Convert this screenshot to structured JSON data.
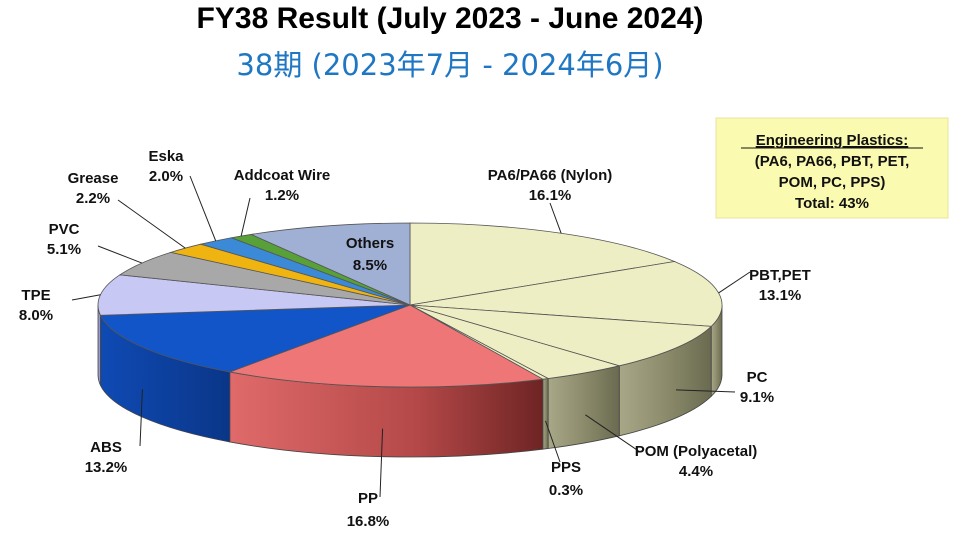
{
  "title": "FY38 Result (July 2023 - June 2024)",
  "subtitle": "38期 (2023年7月 - 2024年6月)",
  "callout": {
    "heading": "Engineering Plastics:",
    "line1": "(PA6, PA66, PBT, PET,",
    "line2": "POM, PC, PPS)",
    "total": "Total: 43%"
  },
  "colors": {
    "engineering": "#eeeec4",
    "pp": "#ee7676",
    "abs": "#1155c8",
    "tpe": "#c8c8f4",
    "pvc": "#a8a8a8",
    "grease": "#f0b410",
    "eska": "#3a8ad8",
    "addcoat": "#58a038",
    "others": "#a0b0d4",
    "callout_bg": "#fafab0"
  },
  "chart_data": {
    "type": "pie",
    "title": "FY38 Result (July 2023 - June 2024)",
    "slices": [
      {
        "label": "PA6/PA66 (Nylon)",
        "value": 16.1,
        "text": "16.1%"
      },
      {
        "label": "PBT,PET",
        "value": 13.1,
        "text": "13.1%"
      },
      {
        "label": "PC",
        "value": 9.1,
        "text": "9.1%"
      },
      {
        "label": "POM (Polyacetal)",
        "value": 4.4,
        "text": "4.4%"
      },
      {
        "label": "PPS",
        "value": 0.3,
        "text": "0.3%"
      },
      {
        "label": "PP",
        "value": 16.8,
        "text": "16.8%"
      },
      {
        "label": "ABS",
        "value": 13.2,
        "text": "13.2%"
      },
      {
        "label": "TPE",
        "value": 8.0,
        "text": "8.0%"
      },
      {
        "label": "PVC",
        "value": 5.1,
        "text": "5.1%"
      },
      {
        "label": "Grease",
        "value": 2.2,
        "text": "2.2%"
      },
      {
        "label": "Eska",
        "value": 2.0,
        "text": "2.0%"
      },
      {
        "label": "Addcoat Wire",
        "value": 1.2,
        "text": "1.2%"
      },
      {
        "label": "Others",
        "value": 8.5,
        "text": "8.5%"
      }
    ]
  }
}
